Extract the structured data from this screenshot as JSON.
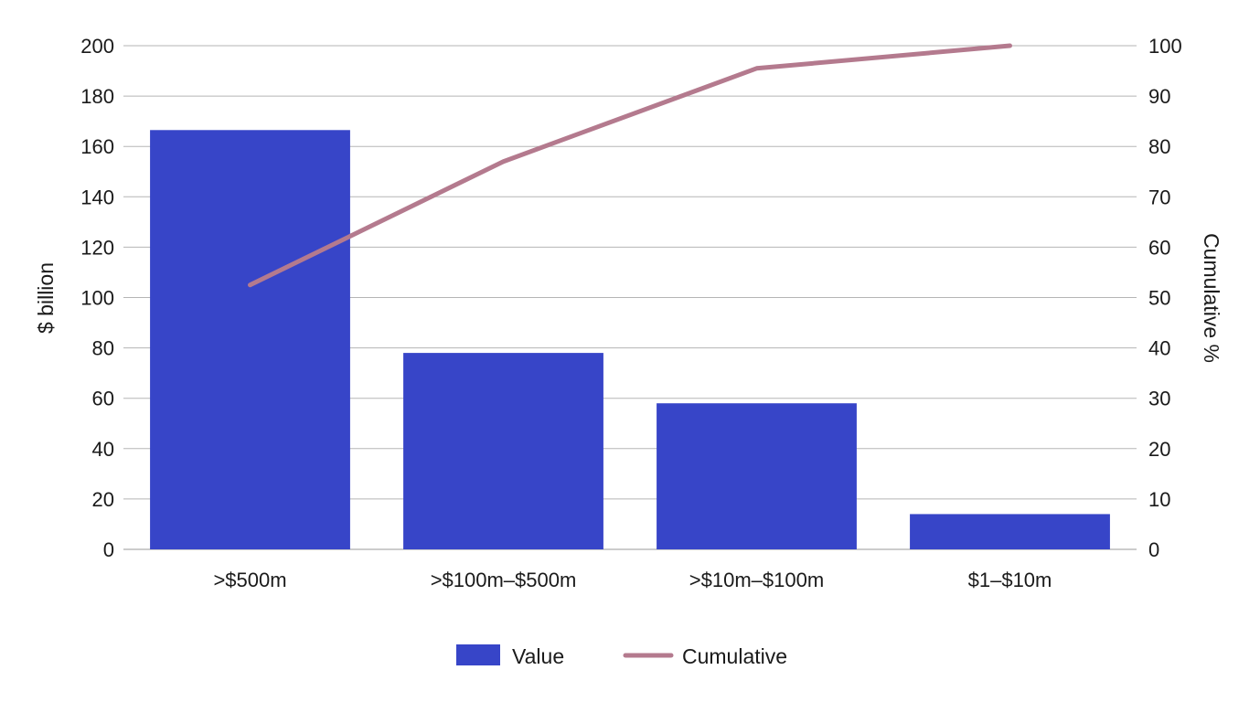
{
  "chart_data": {
    "type": "bar",
    "categories": [
      ">$500m",
      ">$100m–$500m",
      ">$10m–$100m",
      "$1–$10m"
    ],
    "series": [
      {
        "name": "Value",
        "type": "bar",
        "axis": "left",
        "color": "#3745c8",
        "values": [
          166.5,
          78,
          58,
          14
        ]
      },
      {
        "name": "Cumulative",
        "type": "line",
        "axis": "right",
        "color": "#b47a8e",
        "values": [
          52.5,
          77,
          95.5,
          100
        ]
      }
    ],
    "ylabel": "$ billion",
    "ylabel_right": "Cumulative %",
    "ylim": [
      0,
      200
    ],
    "ylim_right": [
      0,
      100
    ],
    "yticks": [
      0,
      20,
      40,
      60,
      80,
      100,
      120,
      140,
      160,
      180,
      200
    ],
    "yticks_right": [
      0,
      10,
      20,
      30,
      40,
      50,
      60,
      70,
      80,
      90,
      100
    ],
    "grid": true,
    "legend_position": "bottom-center"
  }
}
